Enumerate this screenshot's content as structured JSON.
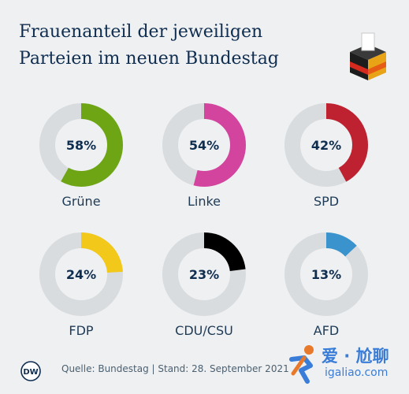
{
  "header": {
    "title_line1": "Frauenanteil der jeweiligen",
    "title_line2": "Parteien im neuen Bundestag"
  },
  "colors": {
    "track": "#d9dcde",
    "text": "#0f2d4f"
  },
  "chart_data": {
    "type": "donut",
    "title": "Frauenanteil der jeweiligen Parteien im neuen Bundestag",
    "unit": "%",
    "categories": [
      "Grüne",
      "Linke",
      "SPD",
      "FDP",
      "CDU/CSU",
      "AFD"
    ],
    "values": [
      58,
      54,
      42,
      24,
      23,
      13
    ],
    "value_labels": [
      "58%",
      "54%",
      "42%",
      "24%",
      "23%",
      "13%"
    ],
    "series_colors": [
      "#6ea515",
      "#d2449e",
      "#be2130",
      "#f2c81b",
      "#000000",
      "#3a93cc"
    ]
  },
  "footer": {
    "logo_text": "DW",
    "source": "Quelle: Bundestag | Stand: 28. September 2021"
  },
  "watermark": {
    "line1": "爱 · 尬聊",
    "line2": "igaliao.com"
  }
}
